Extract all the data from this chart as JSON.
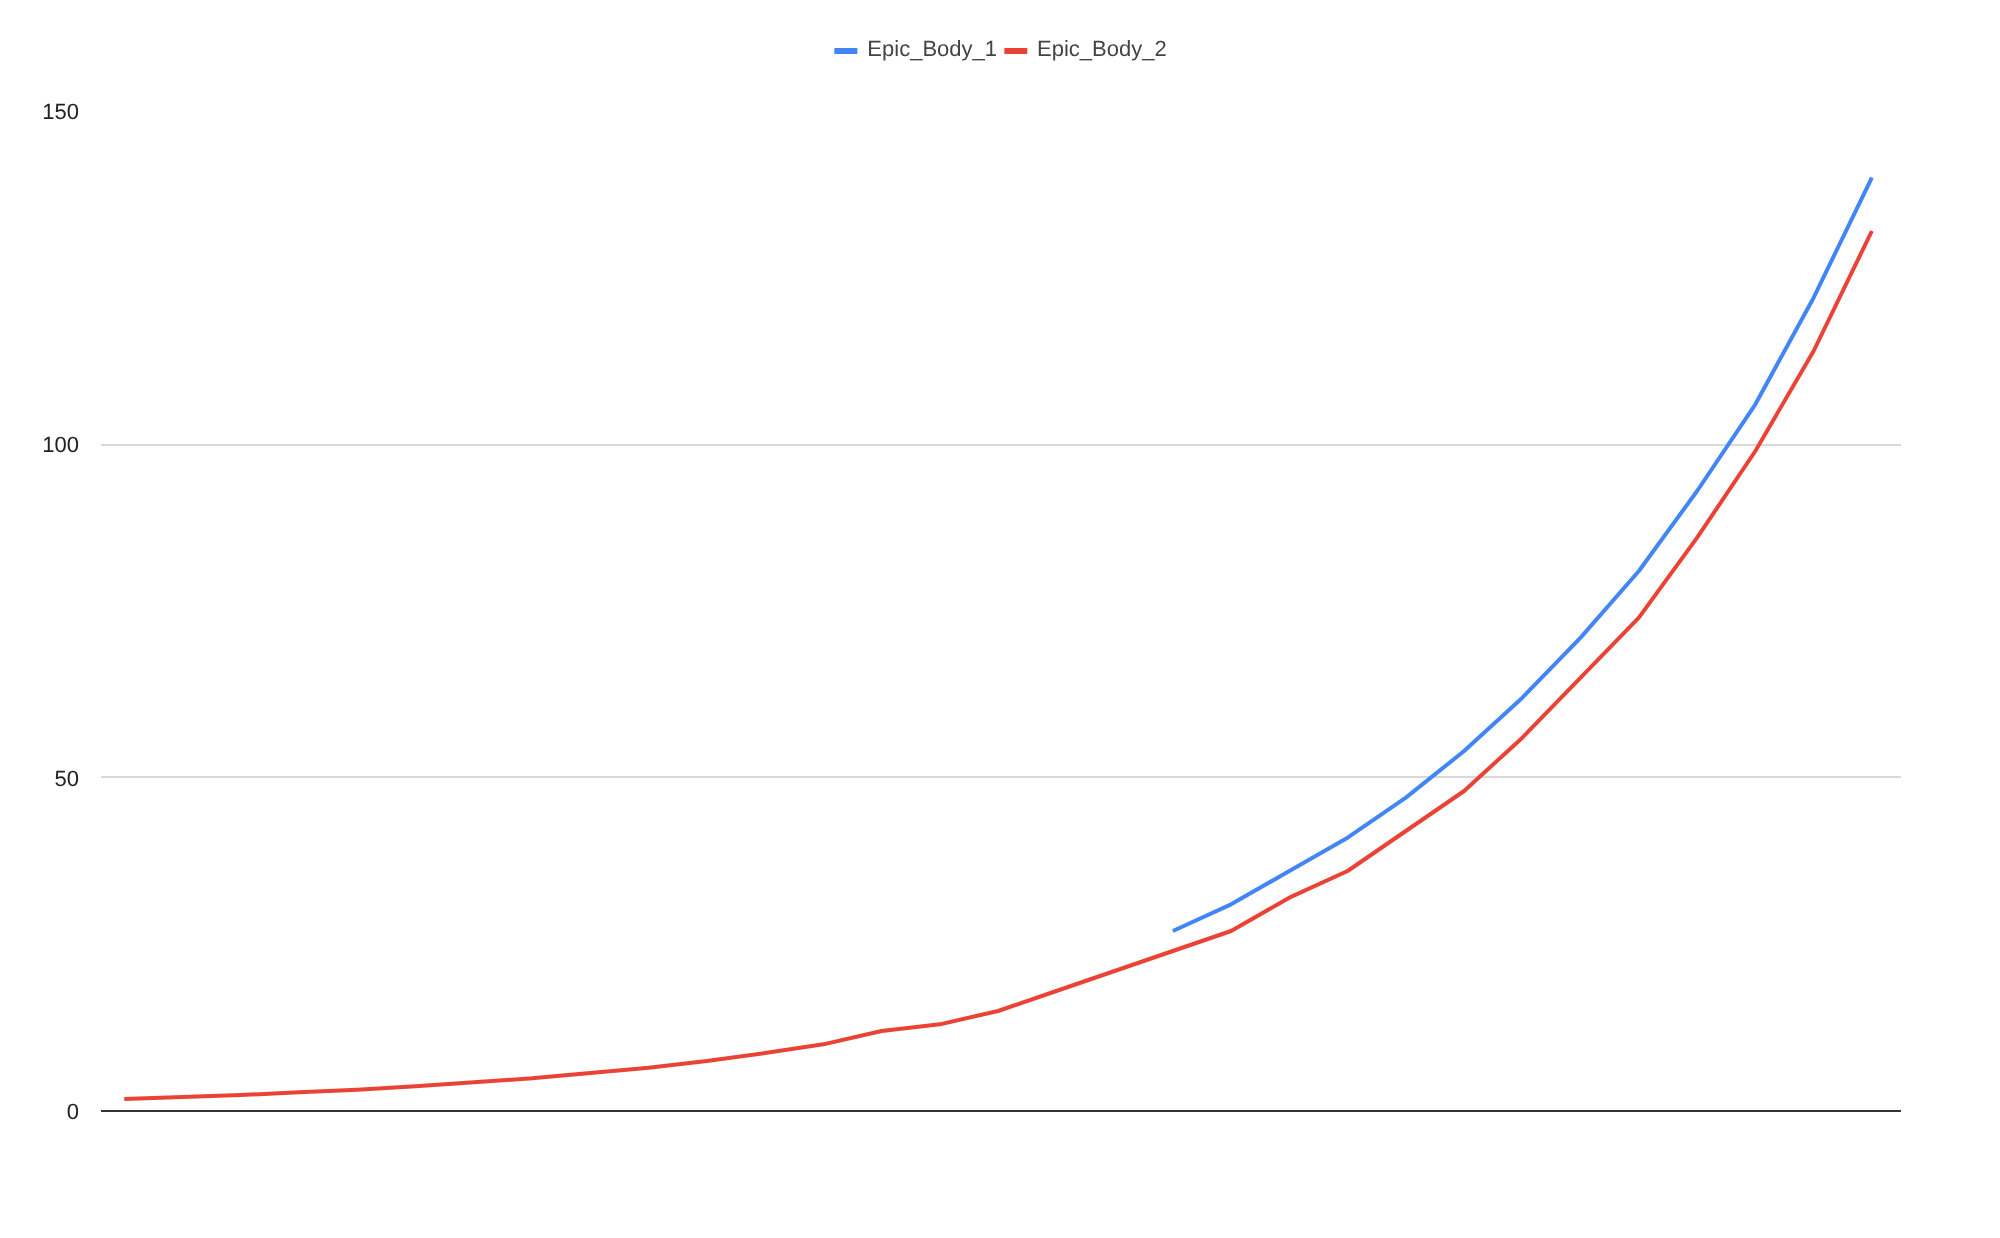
{
  "chart_data": {
    "type": "line",
    "categories": [
      null,
      null,
      null,
      null,
      null,
      null,
      null,
      null,
      null,
      null,
      null,
      null,
      null,
      null,
      null,
      null,
      null,
      null,
      null,
      null,
      null,
      null,
      null,
      null,
      null,
      null,
      null,
      null,
      null,
      null,
      null
    ],
    "series": [
      {
        "name": "Epic_Body_1",
        "color": "#4285f4",
        "values": [
          null,
          null,
          null,
          null,
          null,
          null,
          null,
          null,
          null,
          null,
          null,
          null,
          null,
          null,
          null,
          null,
          null,
          null,
          27,
          31,
          36,
          41,
          47,
          54,
          62,
          71,
          81,
          93,
          106,
          122,
          140
        ]
      },
      {
        "name": "Epic_Body_2",
        "color": "#ea4335",
        "values": [
          1.8,
          2.1,
          2.4,
          2.8,
          3.2,
          3.7,
          4.3,
          4.9,
          5.7,
          6.5,
          7.5,
          8.7,
          10,
          12,
          13,
          15,
          18,
          21,
          24,
          27,
          32,
          36,
          42,
          48,
          56,
          65,
          74,
          86,
          99,
          114,
          132
        ]
      }
    ],
    "ylim": [
      0,
      150
    ],
    "yticks": [
      0,
      50,
      100,
      150
    ],
    "grid": "y",
    "legend": "top",
    "tick_labels": "y"
  }
}
